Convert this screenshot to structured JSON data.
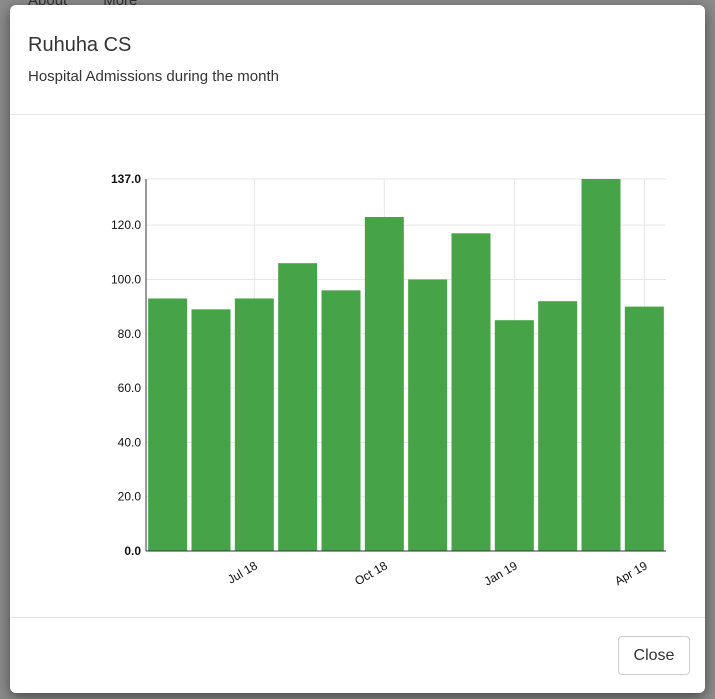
{
  "background": {
    "nav": [
      "About",
      "More"
    ]
  },
  "modal": {
    "title": "Ruhuha CS",
    "subtitle": "Hospital Admissions during the month",
    "close": "Close"
  },
  "chart_data": {
    "type": "bar",
    "categories": [
      null,
      null,
      "Jul 18",
      null,
      null,
      "Oct 18",
      null,
      null,
      "Jan 19",
      null,
      null,
      "Apr 19"
    ],
    "values": [
      93,
      89,
      93,
      106,
      96,
      123,
      100,
      117,
      85,
      92,
      137,
      90
    ],
    "color": "#43a143",
    "ylim": [
      0,
      137
    ],
    "yticks": [
      {
        "value": 0,
        "label": "0.0"
      },
      {
        "value": 20,
        "label": "20.0"
      },
      {
        "value": 40,
        "label": "40.0"
      },
      {
        "value": 60,
        "label": "60.0"
      },
      {
        "value": 80,
        "label": "80.0"
      },
      {
        "value": 100,
        "label": "100.0"
      },
      {
        "value": 120,
        "label": "120.0"
      },
      {
        "value": 137,
        "label": "137.0"
      }
    ],
    "grid": true
  }
}
